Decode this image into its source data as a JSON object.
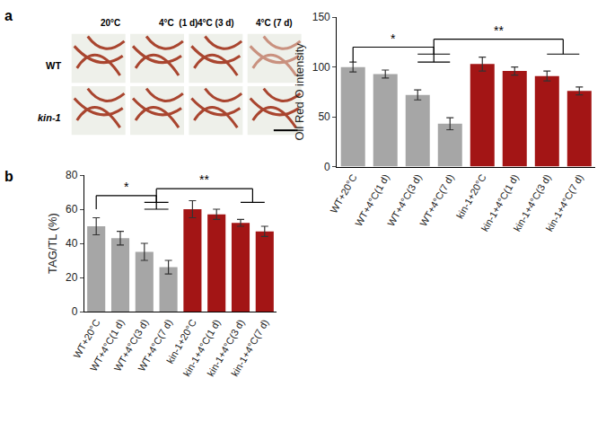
{
  "panel_labels": [
    "a",
    "b"
  ],
  "image_panel": {
    "columns": [
      "20°C",
      "4°C  (1 d)",
      "4°C (3 d)",
      "4°C (7 d)"
    ],
    "rows": [
      "WT",
      "kin-1"
    ]
  },
  "chart_data": [
    {
      "type": "bar",
      "panel": "a",
      "y_label": "Oil Red O intensity",
      "categories": [
        "WT+20°C",
        "WT+4°C(1 d)",
        "WT+4°C(3 d)",
        "WT+4°C(7 d)",
        "kin-1+20°C",
        "kin-1+4°C(1 d)",
        "kin-1+4°C(3 d)",
        "kin-1+4°C(7 d)"
      ],
      "values": [
        100,
        93,
        72,
        43,
        103,
        96,
        91,
        76
      ],
      "errors": [
        5,
        4,
        5,
        6,
        7,
        4,
        5,
        4
      ],
      "colors": [
        "#a6a6a6",
        "#a6a6a6",
        "#a6a6a6",
        "#a6a6a6",
        "#a31515",
        "#a31515",
        "#a31515",
        "#a31515"
      ],
      "ylim": [
        0,
        150
      ],
      "yticks": [
        0,
        50,
        100,
        150
      ],
      "grid": false,
      "significance": [
        {
          "label": "*",
          "left": [
            "WT+20°C"
          ],
          "right": [
            "WT+4°C(3 d)",
            "WT+4°C(7 d)"
          ],
          "y": 120
        },
        {
          "label": "**",
          "left": [
            "WT+4°C(3 d)",
            "WT+4°C(7 d)"
          ],
          "right": [
            "kin-1+4°C(3 d)",
            "kin-1+4°C(7 d)"
          ],
          "y": 128
        }
      ]
    },
    {
      "type": "bar",
      "panel": "b",
      "y_label": "TAG/TL (%)",
      "categories": [
        "WT+20°C",
        "WT+4°C(1 d)",
        "WT+4°C(3 d)",
        "WT+4°C(7 d)",
        "kin-1+20°C",
        "kin-1+4°C(1 d)",
        "kin-1+4°C(3 d)",
        "kin-1+4°C(7 d)"
      ],
      "values": [
        50,
        43,
        35,
        26,
        60,
        57,
        52,
        47
      ],
      "errors": [
        5,
        4,
        5,
        4,
        5,
        3,
        2,
        3
      ],
      "colors": [
        "#a6a6a6",
        "#a6a6a6",
        "#a6a6a6",
        "#a6a6a6",
        "#a31515",
        "#a31515",
        "#a31515",
        "#a31515"
      ],
      "ylim": [
        0,
        80
      ],
      "yticks": [
        0,
        20,
        40,
        60,
        80
      ],
      "grid": false,
      "significance": [
        {
          "label": "*",
          "left": [
            "WT+20°C"
          ],
          "right": [
            "WT+4°C(3 d)",
            "WT+4°C(7 d)"
          ],
          "y": 68
        },
        {
          "label": "**",
          "left": [
            "WT+4°C(3 d)",
            "WT+4°C(7 d)"
          ],
          "right": [
            "kin-1+4°C(3 d)",
            "kin-1+4°C(7 d)"
          ],
          "y": 72
        }
      ]
    }
  ]
}
